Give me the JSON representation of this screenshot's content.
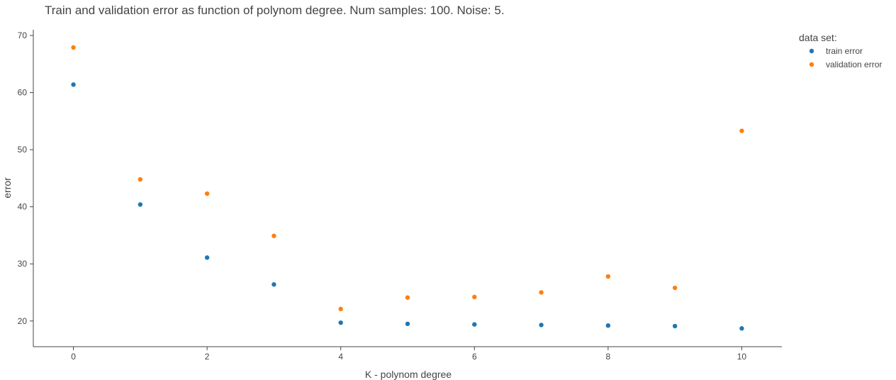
{
  "chart_data": {
    "type": "scatter",
    "title": "Train and validation error as function of polynom degree. Num samples: 100. Noise: 5.",
    "xlabel": "K - polynom degree",
    "ylabel": "error",
    "xlim": [
      -0.6,
      10.6
    ],
    "ylim": [
      15.5,
      71
    ],
    "x_ticks": [
      0,
      2,
      4,
      6,
      8,
      10
    ],
    "y_ticks": [
      20,
      30,
      40,
      50,
      60,
      70
    ],
    "grid": false,
    "legend": {
      "title": "data set:",
      "placement": "top-right"
    },
    "x": [
      0,
      1,
      2,
      3,
      4,
      5,
      6,
      7,
      8,
      9,
      10
    ],
    "series": [
      {
        "name": "train error",
        "color": "#1f77b4",
        "values": [
          61.4,
          40.4,
          31.1,
          26.4,
          19.7,
          19.5,
          19.4,
          19.3,
          19.2,
          19.1,
          18.7
        ]
      },
      {
        "name": "validation error",
        "color": "#ff7f0e",
        "values": [
          67.9,
          44.8,
          42.3,
          34.9,
          22.1,
          24.1,
          24.2,
          25.0,
          27.8,
          25.8,
          53.3
        ]
      }
    ]
  }
}
